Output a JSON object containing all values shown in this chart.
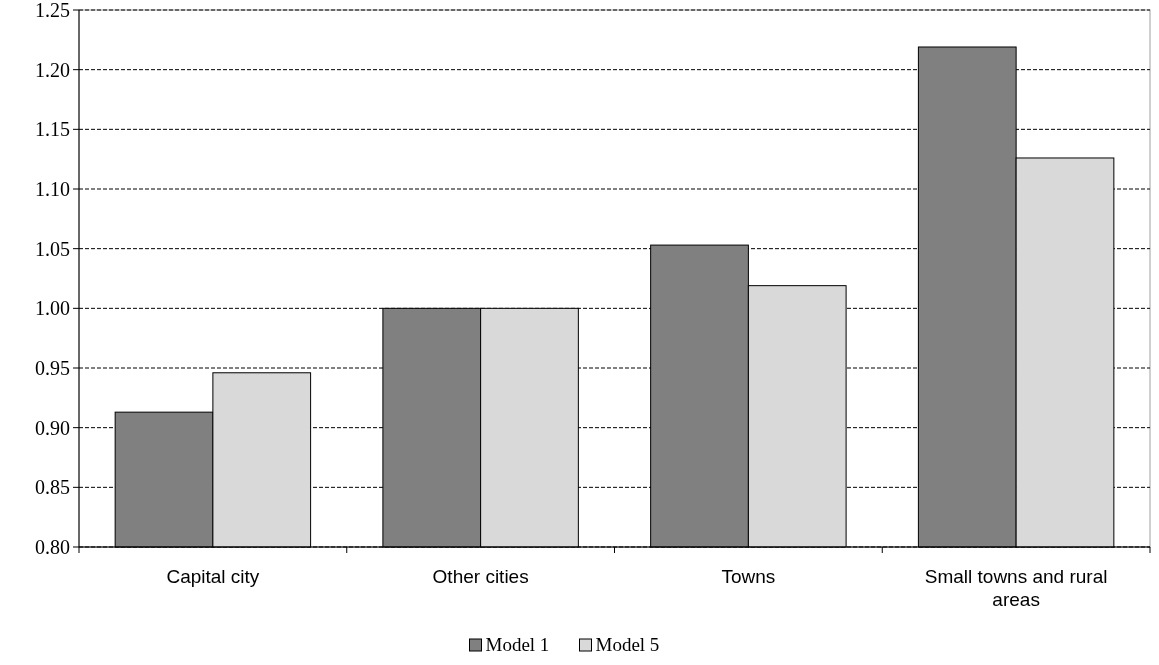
{
  "chart_data": {
    "type": "bar",
    "categories": [
      "Capital city",
      "Other cities",
      "Towns",
      "Small towns and rural areas"
    ],
    "series": [
      {
        "name": "Model 1",
        "color": "#808080",
        "values": [
          0.913,
          1.0,
          1.053,
          1.219
        ]
      },
      {
        "name": "Model 5",
        "color": "#d9d9d9",
        "values": [
          0.946,
          1.0,
          1.019,
          1.126
        ]
      }
    ],
    "ylim": [
      0.8,
      1.25
    ],
    "yticks": [
      {
        "value": 0.8,
        "label": "0.80"
      },
      {
        "value": 0.85,
        "label": "0.85"
      },
      {
        "value": 0.9,
        "label": "0.90"
      },
      {
        "value": 0.95,
        "label": "0.95"
      },
      {
        "value": 1.0,
        "label": "1.00"
      },
      {
        "value": 1.05,
        "label": "1.05"
      },
      {
        "value": 1.1,
        "label": "1.10"
      },
      {
        "value": 1.15,
        "label": "1.15"
      },
      {
        "value": 1.2,
        "label": "1.20"
      },
      {
        "value": 1.25,
        "label": "1.25"
      }
    ],
    "grid": "y",
    "legend": "bottom"
  }
}
